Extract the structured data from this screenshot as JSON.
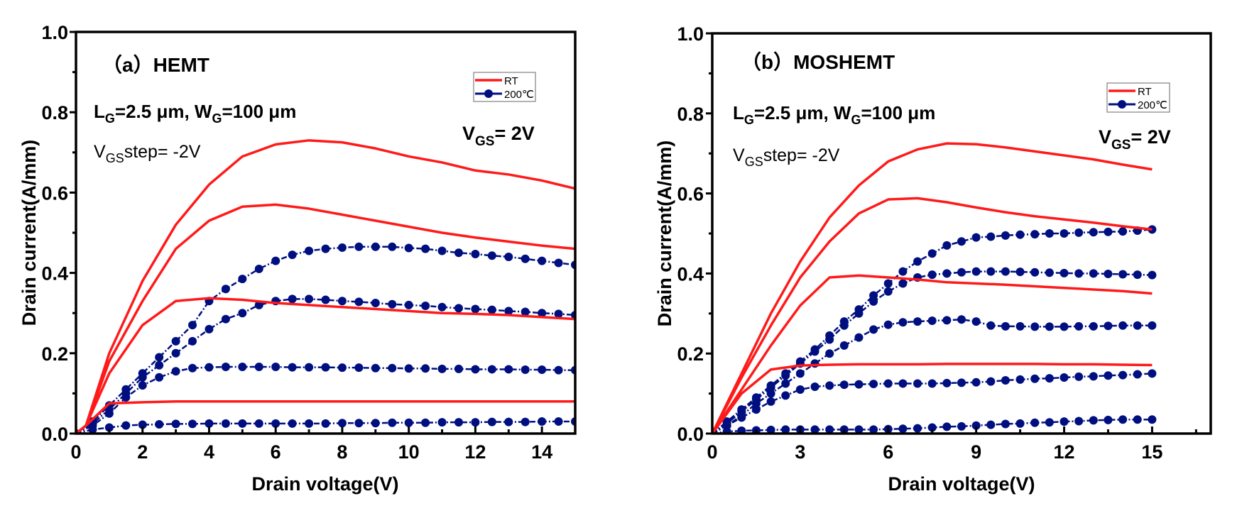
{
  "colors": {
    "rt": "#ff1a1a",
    "hot": "#000f80",
    "axis": "#000000",
    "legend_border": "#808080"
  },
  "chart_data": [
    {
      "type": "line",
      "panel_label": "（a）HEMT",
      "gate_label": {
        "l": "L",
        "l_sub": "G",
        "mid": "=2.5 μm, W",
        "w_sub": "G",
        "end": "=100 μm"
      },
      "step_label": {
        "v": "V",
        "sub": "GS",
        "rest": "step= -2V"
      },
      "vgs_label": {
        "v": "V",
        "sub": "GS",
        "rest": "= 2V"
      },
      "xlabel": "Drain voltage(V)",
      "ylabel": "Drain current(A/mm)",
      "xlim": [
        0,
        15
      ],
      "ylim": [
        0,
        1.0
      ],
      "xticks": [
        0,
        2,
        4,
        6,
        8,
        10,
        12,
        14
      ],
      "xtick_labels": [
        "0",
        "2",
        "4",
        "6",
        "8",
        "10",
        "12",
        "14"
      ],
      "xminor": [
        1,
        3,
        5,
        7,
        9,
        11,
        13,
        15
      ],
      "yticks": [
        0,
        0.2,
        0.4,
        0.6,
        0.8,
        1.0
      ],
      "ytick_labels": [
        "0.0",
        "0.2",
        "0.4",
        "0.6",
        "0.8",
        "1.0"
      ],
      "yminor": [
        0.1,
        0.3,
        0.5,
        0.7,
        0.9
      ],
      "grid": false,
      "legend": {
        "placement": "top-right",
        "entries": [
          "RT",
          "200℃"
        ]
      },
      "rt": {
        "name": "RT",
        "x": [
          0,
          0.3,
          1,
          2,
          3,
          4,
          5,
          6,
          7,
          8,
          9,
          10,
          11,
          12,
          13,
          14,
          15
        ],
        "series": [
          [
            0,
            0.02,
            0.2,
            0.38,
            0.52,
            0.62,
            0.69,
            0.72,
            0.73,
            0.725,
            0.71,
            0.69,
            0.675,
            0.655,
            0.645,
            0.63,
            0.61
          ],
          [
            0,
            0.02,
            0.18,
            0.33,
            0.46,
            0.53,
            0.565,
            0.57,
            0.56,
            0.545,
            0.53,
            0.515,
            0.5,
            0.488,
            0.478,
            0.468,
            0.46
          ],
          [
            0,
            0.02,
            0.15,
            0.27,
            0.33,
            0.337,
            0.333,
            0.325,
            0.32,
            0.315,
            0.31,
            0.305,
            0.3,
            0.298,
            0.295,
            0.29,
            0.285
          ],
          [
            0,
            0.02,
            0.075,
            0.078,
            0.08,
            0.08,
            0.08,
            0.08,
            0.08,
            0.08,
            0.08,
            0.08,
            0.08,
            0.08,
            0.08,
            0.08,
            0.08
          ]
        ]
      },
      "hot": {
        "name": "200℃",
        "x": [
          0,
          0.5,
          1,
          1.5,
          2,
          2.5,
          3,
          3.5,
          4,
          4.5,
          5,
          5.5,
          6,
          6.5,
          7,
          7.5,
          8,
          8.5,
          9,
          9.5,
          10,
          10.5,
          11,
          11.5,
          12,
          12.5,
          13,
          13.5,
          14,
          14.5,
          15
        ],
        "series": [
          [
            0,
            0.03,
            0.07,
            0.11,
            0.15,
            0.19,
            0.23,
            0.27,
            0.33,
            0.36,
            0.385,
            0.41,
            0.43,
            0.445,
            0.455,
            0.46,
            0.463,
            0.465,
            0.465,
            0.465,
            0.462,
            0.46,
            0.455,
            0.45,
            0.447,
            0.443,
            0.44,
            0.435,
            0.43,
            0.425,
            0.42
          ],
          [
            0,
            0.025,
            0.06,
            0.1,
            0.14,
            0.17,
            0.2,
            0.23,
            0.26,
            0.285,
            0.3,
            0.32,
            0.33,
            0.335,
            0.335,
            0.333,
            0.33,
            0.328,
            0.325,
            0.322,
            0.32,
            0.318,
            0.315,
            0.312,
            0.31,
            0.308,
            0.305,
            0.303,
            0.3,
            0.298,
            0.295
          ],
          [
            0,
            0.02,
            0.05,
            0.09,
            0.12,
            0.14,
            0.155,
            0.163,
            0.165,
            0.166,
            0.166,
            0.166,
            0.166,
            0.165,
            0.165,
            0.165,
            0.164,
            0.164,
            0.163,
            0.163,
            0.162,
            0.162,
            0.161,
            0.161,
            0.16,
            0.16,
            0.16,
            0.159,
            0.159,
            0.158,
            0.158
          ],
          [
            0,
            0.01,
            0.015,
            0.02,
            0.022,
            0.023,
            0.024,
            0.024,
            0.025,
            0.025,
            0.025,
            0.025,
            0.025,
            0.025,
            0.025,
            0.025,
            0.026,
            0.026,
            0.026,
            0.027,
            0.027,
            0.027,
            0.028,
            0.028,
            0.028,
            0.029,
            0.029,
            0.029,
            0.03,
            0.03,
            0.03
          ]
        ]
      }
    },
    {
      "type": "line",
      "panel_label": "（b）MOSHEMT",
      "gate_label": {
        "l": "L",
        "l_sub": "G",
        "mid": "=2.5 μm, W",
        "w_sub": "G",
        "end": "=100 μm"
      },
      "step_label": {
        "v": "V",
        "sub": "GS",
        "rest": "step= -2V"
      },
      "vgs_label": {
        "v": "V",
        "sub": "GS",
        "rest": "= 2V"
      },
      "xlabel": "Drain voltage(V)",
      "ylabel": "Drain current(A/mm)",
      "xlim": [
        0,
        17
      ],
      "ylim": [
        0,
        1.0
      ],
      "xticks": [
        0,
        3,
        6,
        9,
        12,
        15
      ],
      "xtick_labels": [
        "0",
        "3",
        "6",
        "9",
        "12",
        "15"
      ],
      "xminor": [
        1.5,
        4.5,
        7.5,
        10.5,
        13.5,
        16.5
      ],
      "yticks": [
        0,
        0.2,
        0.4,
        0.6,
        0.8,
        1.0
      ],
      "ytick_labels": [
        "0.0",
        "0.2",
        "0.4",
        "0.6",
        "0.8",
        "1.0"
      ],
      "yminor": [
        0.1,
        0.3,
        0.5,
        0.7,
        0.9
      ],
      "grid": false,
      "legend": {
        "placement": "top-right",
        "entries": [
          "RT",
          "200℃"
        ]
      },
      "rt": {
        "name": "RT",
        "x": [
          0,
          1,
          2,
          3,
          4,
          5,
          6,
          7,
          8,
          9,
          10,
          11,
          12,
          13,
          14,
          15
        ],
        "series": [
          [
            0,
            0.15,
            0.3,
            0.43,
            0.54,
            0.62,
            0.68,
            0.71,
            0.725,
            0.723,
            0.715,
            0.705,
            0.695,
            0.685,
            0.672,
            0.66
          ],
          [
            0,
            0.14,
            0.27,
            0.39,
            0.48,
            0.55,
            0.585,
            0.588,
            0.578,
            0.565,
            0.553,
            0.543,
            0.535,
            0.527,
            0.518,
            0.51
          ],
          [
            0,
            0.11,
            0.22,
            0.32,
            0.39,
            0.395,
            0.39,
            0.385,
            0.378,
            0.375,
            0.372,
            0.368,
            0.364,
            0.36,
            0.356,
            0.35
          ],
          [
            0,
            0.1,
            0.16,
            0.17,
            0.172,
            0.173,
            0.173,
            0.173,
            0.174,
            0.174,
            0.174,
            0.174,
            0.173,
            0.173,
            0.172,
            0.171
          ]
        ]
      },
      "hot": {
        "name": "200℃",
        "x": [
          0,
          0.5,
          1,
          1.5,
          2,
          2.5,
          3,
          3.5,
          4,
          4.5,
          5,
          5.5,
          6,
          6.5,
          7,
          7.5,
          8,
          8.5,
          9,
          9.5,
          10,
          10.5,
          11,
          11.5,
          12,
          12.5,
          13,
          13.5,
          14,
          14.5,
          15
        ],
        "series": [
          [
            0,
            0.03,
            0.06,
            0.09,
            0.12,
            0.15,
            0.18,
            0.21,
            0.245,
            0.28,
            0.31,
            0.345,
            0.375,
            0.405,
            0.43,
            0.45,
            0.47,
            0.48,
            0.49,
            0.492,
            0.495,
            0.497,
            0.498,
            0.5,
            0.5,
            0.502,
            0.503,
            0.504,
            0.505,
            0.507,
            0.51
          ],
          [
            0,
            0.025,
            0.055,
            0.085,
            0.115,
            0.145,
            0.175,
            0.205,
            0.235,
            0.27,
            0.3,
            0.33,
            0.355,
            0.375,
            0.39,
            0.397,
            0.4,
            0.403,
            0.405,
            0.405,
            0.405,
            0.404,
            0.403,
            0.402,
            0.401,
            0.4,
            0.4,
            0.399,
            0.398,
            0.397,
            0.396
          ],
          [
            0,
            0.02,
            0.045,
            0.075,
            0.1,
            0.125,
            0.15,
            0.175,
            0.2,
            0.22,
            0.24,
            0.26,
            0.272,
            0.278,
            0.28,
            0.282,
            0.283,
            0.285,
            0.28,
            0.27,
            0.268,
            0.268,
            0.267,
            0.267,
            0.267,
            0.268,
            0.268,
            0.269,
            0.27,
            0.27,
            0.27
          ],
          [
            0,
            0.02,
            0.04,
            0.06,
            0.08,
            0.095,
            0.11,
            0.117,
            0.12,
            0.122,
            0.123,
            0.124,
            0.125,
            0.125,
            0.125,
            0.125,
            0.126,
            0.127,
            0.128,
            0.13,
            0.133,
            0.135,
            0.137,
            0.138,
            0.14,
            0.142,
            0.143,
            0.145,
            0.146,
            0.148,
            0.15
          ],
          [
            0,
            0.005,
            0.007,
            0.008,
            0.009,
            0.01,
            0.01,
            0.01,
            0.01,
            0.01,
            0.01,
            0.01,
            0.011,
            0.012,
            0.013,
            0.015,
            0.017,
            0.018,
            0.02,
            0.022,
            0.024,
            0.025,
            0.027,
            0.028,
            0.03,
            0.031,
            0.033,
            0.034,
            0.035,
            0.035,
            0.035
          ]
        ]
      }
    }
  ]
}
